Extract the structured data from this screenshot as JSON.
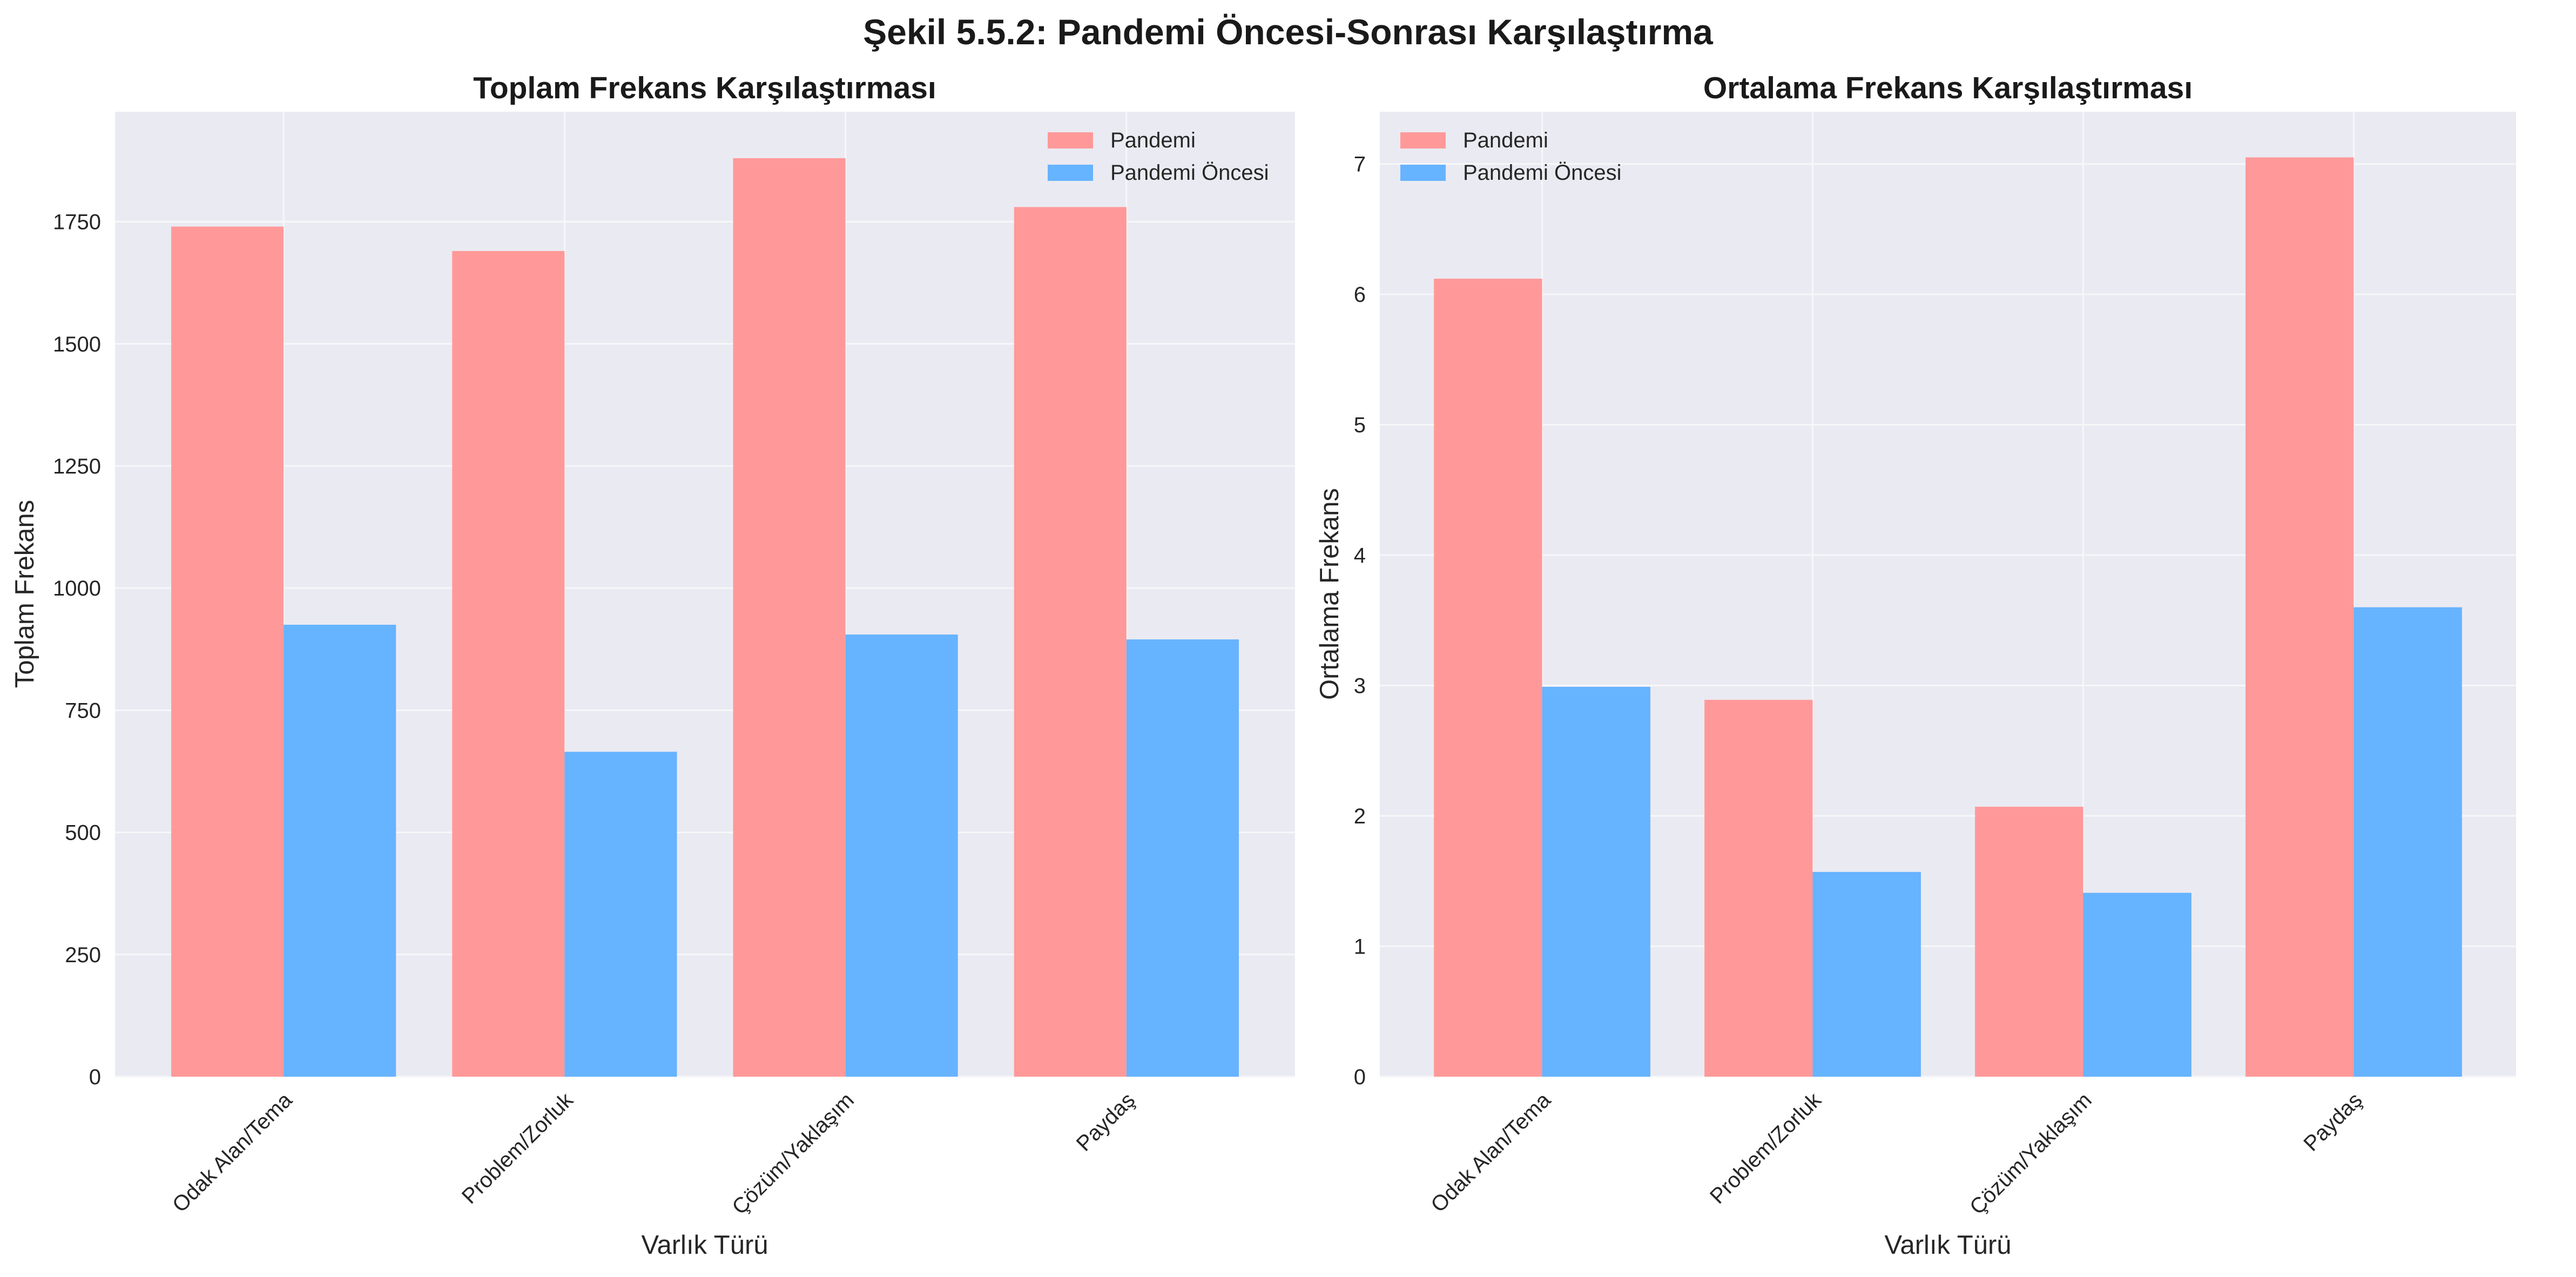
{
  "figure": {
    "suptitle": "Şekil 5.5.2: Pandemi Öncesi-Sonrası Karşılaştırma"
  },
  "colors": {
    "background": "#ffffff",
    "plot_background": "#eaeaf2",
    "grid": "#f7f7fa",
    "pandemi": "#ff9999",
    "pandemi_oncesi": "#66b3ff"
  },
  "chart_data": [
    {
      "type": "bar",
      "title": "Toplam Frekans Karşılaştırması",
      "xlabel": "Varlık Türü",
      "ylabel": "Toplam Frekans",
      "categories": [
        "Odak Alan/Tema",
        "Problem/Zorluk",
        "Çözüm/Yaklaşım",
        "Paydaş"
      ],
      "series": [
        {
          "name": "Pandemi",
          "color": "#ff9999",
          "values": [
            1740,
            1690,
            1880,
            1780
          ]
        },
        {
          "name": "Pandemi Öncesi",
          "color": "#66b3ff",
          "values": [
            925,
            665,
            905,
            895
          ]
        }
      ],
      "ylim": [
        0,
        1975
      ],
      "yticks": [
        0,
        250,
        500,
        750,
        1000,
        1250,
        1500,
        1750
      ],
      "grid": true,
      "legend": "top-right"
    },
    {
      "type": "bar",
      "title": "Ortalama Frekans Karşılaştırması",
      "xlabel": "Varlık Türü",
      "ylabel": "Ortalama Frekans",
      "categories": [
        "Odak Alan/Tema",
        "Problem/Zorluk",
        "Çözüm/Yaklaşım",
        "Paydaş"
      ],
      "series": [
        {
          "name": "Pandemi",
          "color": "#ff9999",
          "values": [
            6.12,
            2.89,
            2.07,
            7.05
          ]
        },
        {
          "name": "Pandemi Öncesi",
          "color": "#66b3ff",
          "values": [
            2.99,
            1.57,
            1.41,
            3.6
          ]
        }
      ],
      "ylim": [
        0,
        7.4
      ],
      "yticks": [
        0,
        1,
        2,
        3,
        4,
        5,
        6,
        7
      ],
      "grid": true,
      "legend": "top-left"
    }
  ]
}
